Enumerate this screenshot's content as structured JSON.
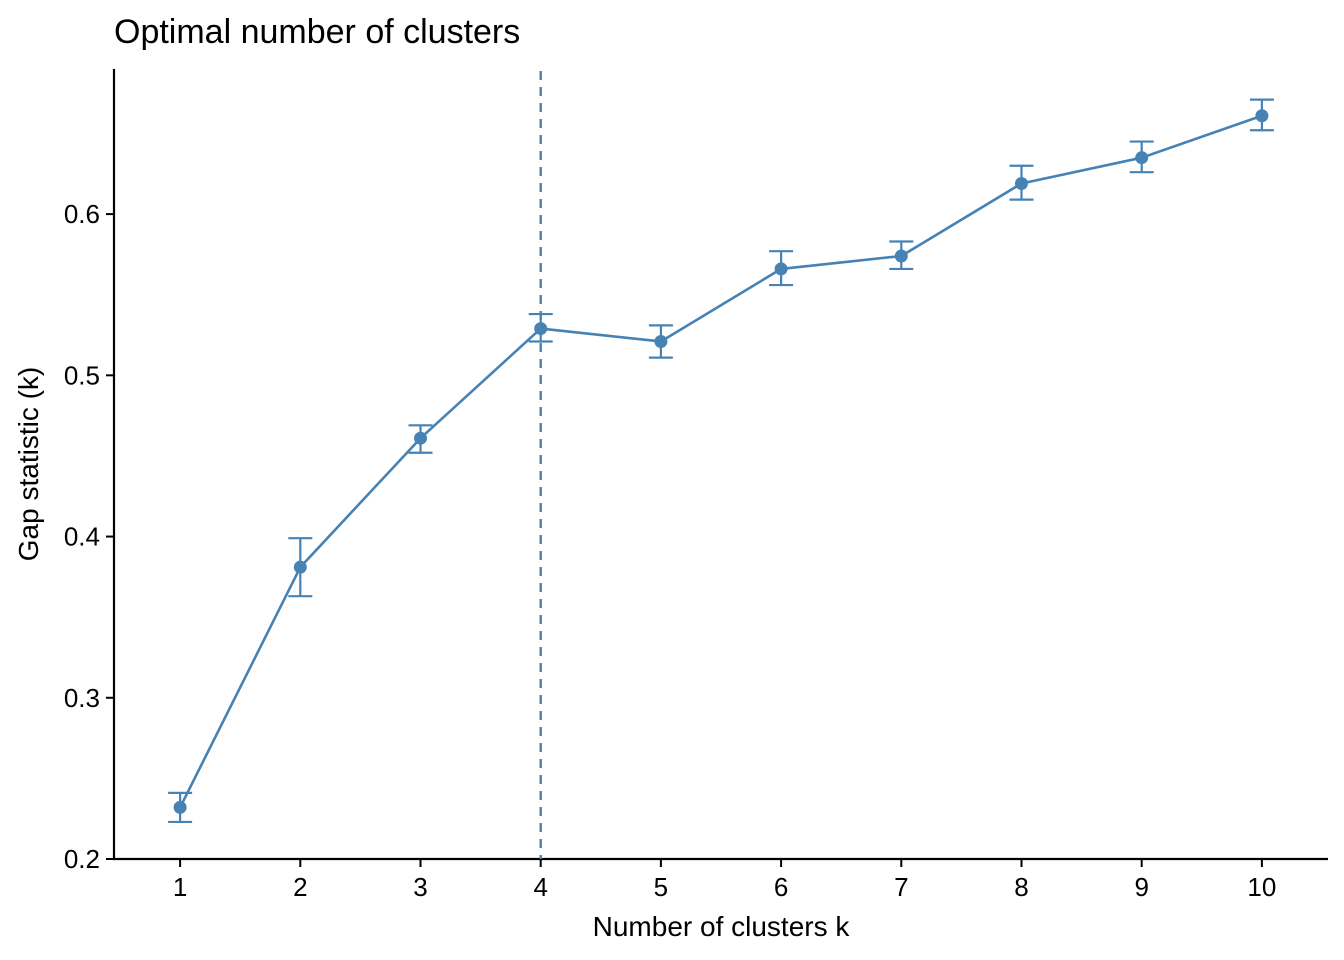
{
  "chart_data": {
    "type": "line",
    "title": "Optimal number of clusters",
    "xlabel": "Number of clusters k",
    "ylabel": "Gap statistic (k)",
    "x": [
      1,
      2,
      3,
      4,
      5,
      6,
      7,
      8,
      9,
      10
    ],
    "xticks": [
      "1",
      "2",
      "3",
      "4",
      "5",
      "6",
      "7",
      "8",
      "9",
      "10"
    ],
    "yticks": [
      "0.2",
      "0.3",
      "0.4",
      "0.5",
      "0.6"
    ],
    "ylim": [
      0.2,
      0.69
    ],
    "series": [
      {
        "values": [
          0.232,
          0.381,
          0.461,
          0.529,
          0.521,
          0.566,
          0.574,
          0.619,
          0.635,
          0.661
        ],
        "error_low": [
          0.223,
          0.363,
          0.452,
          0.521,
          0.511,
          0.556,
          0.566,
          0.609,
          0.626,
          0.652
        ],
        "error_high": [
          0.241,
          0.399,
          0.469,
          0.538,
          0.531,
          0.577,
          0.583,
          0.63,
          0.645,
          0.671
        ]
      }
    ],
    "optimal_k": 4,
    "color": "#4682B4",
    "grid": false,
    "legend": "none"
  }
}
